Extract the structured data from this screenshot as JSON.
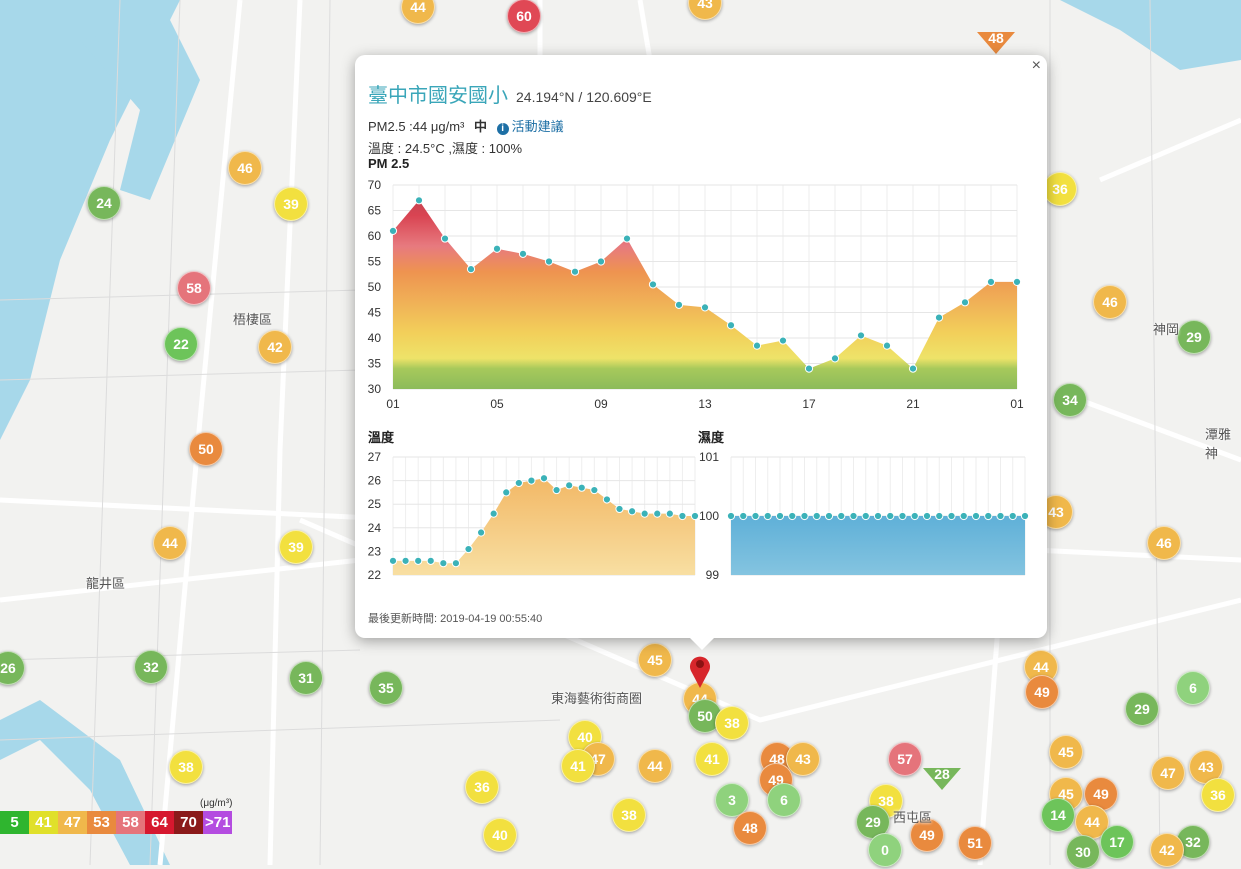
{
  "map": {
    "district_labels": [
      "梧棲區",
      "龍井區",
      "神岡",
      "潭雅神",
      "東海藝術街商圈",
      "西屯區"
    ],
    "markers": [
      {
        "v": "44",
        "x": 418,
        "y": 7,
        "c": "#f0b84b"
      },
      {
        "v": "60",
        "x": 524,
        "y": 16,
        "c": "#e04855"
      },
      {
        "v": "43",
        "x": 705,
        "y": 3,
        "c": "#f0b84b"
      },
      {
        "v": "24",
        "x": 104,
        "y": 203,
        "c": "#77b75b"
      },
      {
        "v": "46",
        "x": 245,
        "y": 168,
        "c": "#f0b84b"
      },
      {
        "v": "39",
        "x": 291,
        "y": 204,
        "c": "#f2e03f"
      },
      {
        "v": "58",
        "x": 194,
        "y": 288,
        "c": "#e5747b"
      },
      {
        "v": "22",
        "x": 181,
        "y": 344,
        "c": "#6dc45a"
      },
      {
        "v": "42",
        "x": 275,
        "y": 347,
        "c": "#f0b84b"
      },
      {
        "v": "50",
        "x": 206,
        "y": 449,
        "c": "#e98a3e"
      },
      {
        "v": "44",
        "x": 170,
        "y": 543,
        "c": "#f0b84b"
      },
      {
        "v": "39",
        "x": 296,
        "y": 547,
        "c": "#f2e03f"
      },
      {
        "v": "26",
        "x": 8,
        "y": 668,
        "c": "#77b75b"
      },
      {
        "v": "32",
        "x": 151,
        "y": 667,
        "c": "#77b75b"
      },
      {
        "v": "31",
        "x": 306,
        "y": 678,
        "c": "#77b75b"
      },
      {
        "v": "35",
        "x": 386,
        "y": 688,
        "c": "#77b75b"
      },
      {
        "v": "38",
        "x": 186,
        "y": 767,
        "c": "#f2e03f"
      },
      {
        "v": "36",
        "x": 1060,
        "y": 189,
        "c": "#f2e03f"
      },
      {
        "v": "46",
        "x": 1110,
        "y": 302,
        "c": "#f0b84b"
      },
      {
        "v": "29",
        "x": 1194,
        "y": 337,
        "c": "#77b75b"
      },
      {
        "v": "34",
        "x": 1070,
        "y": 400,
        "c": "#77b75b"
      },
      {
        "v": "43",
        "x": 1056,
        "y": 512,
        "c": "#f0b84b"
      },
      {
        "v": "46",
        "x": 1164,
        "y": 543,
        "c": "#f0b84b"
      },
      {
        "v": "44",
        "x": 1041,
        "y": 667,
        "c": "#f0b84b"
      },
      {
        "v": "49",
        "x": 1042,
        "y": 692,
        "c": "#e98a3e"
      },
      {
        "v": "6",
        "x": 1193,
        "y": 688,
        "c": "#8fd27d"
      },
      {
        "v": "29",
        "x": 1142,
        "y": 709,
        "c": "#77b75b"
      },
      {
        "v": "45",
        "x": 1066,
        "y": 752,
        "c": "#f0b84b"
      },
      {
        "v": "47",
        "x": 1168,
        "y": 773,
        "c": "#f0b84b"
      },
      {
        "v": "43",
        "x": 1206,
        "y": 767,
        "c": "#f0b84b"
      },
      {
        "v": "45",
        "x": 1066,
        "y": 794,
        "c": "#f0b84b"
      },
      {
        "v": "49",
        "x": 1101,
        "y": 794,
        "c": "#e98a3e"
      },
      {
        "v": "36",
        "x": 1218,
        "y": 795,
        "c": "#f2e03f"
      },
      {
        "v": "14",
        "x": 1058,
        "y": 815,
        "c": "#6dc45a"
      },
      {
        "v": "44",
        "x": 1092,
        "y": 822,
        "c": "#f0b84b"
      },
      {
        "v": "17",
        "x": 1117,
        "y": 842,
        "c": "#6dc45a"
      },
      {
        "v": "32",
        "x": 1193,
        "y": 842,
        "c": "#77b75b"
      },
      {
        "v": "42",
        "x": 1167,
        "y": 850,
        "c": "#f0b84b"
      },
      {
        "v": "30",
        "x": 1083,
        "y": 852,
        "c": "#77b75b"
      },
      {
        "v": "45",
        "x": 655,
        "y": 660,
        "c": "#f0b84b"
      },
      {
        "v": "44",
        "x": 700,
        "y": 699,
        "c": "#f0b84b"
      },
      {
        "v": "50",
        "x": 705,
        "y": 716,
        "c": "#77b75b"
      },
      {
        "v": "38",
        "x": 732,
        "y": 723,
        "c": "#f2e03f"
      },
      {
        "v": "40",
        "x": 585,
        "y": 737,
        "c": "#f2e03f"
      },
      {
        "v": "47",
        "x": 598,
        "y": 759,
        "c": "#f0b84b"
      },
      {
        "v": "41",
        "x": 578,
        "y": 766,
        "c": "#f2e03f"
      },
      {
        "v": "44",
        "x": 655,
        "y": 766,
        "c": "#f0b84b"
      },
      {
        "v": "41",
        "x": 712,
        "y": 759,
        "c": "#f2e03f"
      },
      {
        "v": "48",
        "x": 777,
        "y": 759,
        "c": "#e98a3e"
      },
      {
        "v": "43",
        "x": 803,
        "y": 759,
        "c": "#f0b84b"
      },
      {
        "v": "49",
        "x": 776,
        "y": 780,
        "c": "#e98a3e"
      },
      {
        "v": "57",
        "x": 905,
        "y": 759,
        "c": "#e5747b"
      },
      {
        "v": "36",
        "x": 482,
        "y": 787,
        "c": "#f2e03f"
      },
      {
        "v": "3",
        "x": 732,
        "y": 800,
        "c": "#8fd27d"
      },
      {
        "v": "6",
        "x": 784,
        "y": 800,
        "c": "#8fd27d"
      },
      {
        "v": "38",
        "x": 886,
        "y": 801,
        "c": "#f2e03f"
      },
      {
        "v": "38",
        "x": 629,
        "y": 815,
        "c": "#f2e03f"
      },
      {
        "v": "48",
        "x": 750,
        "y": 828,
        "c": "#e98a3e"
      },
      {
        "v": "29",
        "x": 873,
        "y": 822,
        "c": "#77b75b"
      },
      {
        "v": "49",
        "x": 927,
        "y": 835,
        "c": "#e98a3e"
      },
      {
        "v": "51",
        "x": 975,
        "y": 843,
        "c": "#e98a3e"
      },
      {
        "v": "40",
        "x": 500,
        "y": 835,
        "c": "#f2e03f"
      },
      {
        "v": "0",
        "x": 885,
        "y": 850,
        "c": "#8fd27d"
      }
    ],
    "triangles": [
      {
        "v": "48",
        "x": 996,
        "y": 38,
        "c": "#e98a3e"
      },
      {
        "v": "28",
        "x": 942,
        "y": 774,
        "c": "#77b75b"
      }
    ]
  },
  "legend": {
    "unit": "(μg/m³)",
    "cells": [
      {
        "v": "5",
        "c": "#2fb52f"
      },
      {
        "v": "41",
        "c": "#e0e02a"
      },
      {
        "v": "47",
        "c": "#f0b84b"
      },
      {
        "v": "53",
        "c": "#e98a3e"
      },
      {
        "v": "58",
        "c": "#e5747b"
      },
      {
        "v": "64",
        "c": "#d6182f"
      },
      {
        "v": "70",
        "c": "#8b1a1a"
      },
      {
        "v": ">71",
        "c": "#b44ce0"
      }
    ]
  },
  "popup": {
    "close": "×",
    "station_name": "臺中市國安國小",
    "coords": "24.194°N / 120.609°E",
    "pm_text": "PM2.5 :44 μg/m³",
    "pm_level": "中",
    "advice_label": "活動建議",
    "info_glyph": "i",
    "env_text": "溫度 : 24.5°C ,濕度 : 100%",
    "updated": "最後更新時間: 2019-04-19 00:55:40"
  },
  "chart_data": [
    {
      "type": "area",
      "title": "PM 2.5",
      "x": [
        "01",
        "02",
        "03",
        "04",
        "05",
        "06",
        "07",
        "08",
        "09",
        "10",
        "11",
        "12",
        "13",
        "14",
        "15",
        "16",
        "17",
        "18",
        "19",
        "20",
        "21",
        "22",
        "23",
        "00",
        "01"
      ],
      "xticks": [
        "01",
        "05",
        "09",
        "13",
        "17",
        "21",
        "01"
      ],
      "values": [
        61,
        67,
        59.5,
        53.5,
        57.5,
        56.5,
        55,
        53,
        55,
        59.5,
        50.5,
        46.5,
        46,
        42.5,
        38.5,
        39.5,
        34,
        36,
        40.5,
        38.5,
        34,
        44,
        47,
        51,
        51
      ],
      "ylim": [
        30,
        70
      ],
      "yticks": [
        30,
        35,
        40,
        45,
        50,
        55,
        60,
        65,
        70
      ]
    },
    {
      "type": "area",
      "title": "溫度",
      "values": [
        22.6,
        22.6,
        22.6,
        22.6,
        22.5,
        22.5,
        23.1,
        23.8,
        24.6,
        25.5,
        25.9,
        26.0,
        26.1,
        25.6,
        25.8,
        25.7,
        25.6,
        25.2,
        24.8,
        24.7,
        24.6,
        24.6,
        24.6,
        24.5,
        24.5
      ],
      "ylim": [
        22,
        27
      ],
      "yticks": [
        22,
        23,
        24,
        25,
        26,
        27
      ]
    },
    {
      "type": "area",
      "title": "濕度",
      "values": [
        100,
        100,
        100,
        100,
        100,
        100,
        100,
        100,
        100,
        100,
        100,
        100,
        100,
        100,
        100,
        100,
        100,
        100,
        100,
        100,
        100,
        100,
        100,
        100,
        100
      ],
      "ylim": [
        99,
        101
      ],
      "yticks": [
        99,
        100,
        101
      ]
    }
  ]
}
